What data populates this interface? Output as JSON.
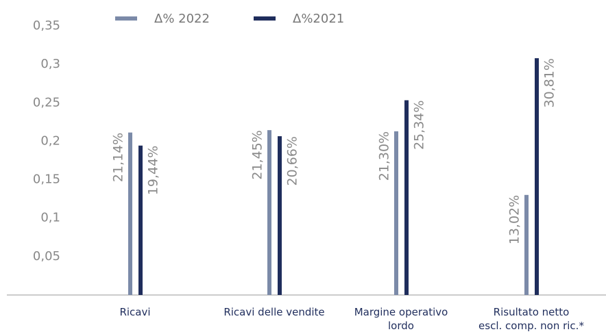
{
  "chart_data": {
    "type": "bar",
    "categories": [
      "Ricavi",
      "Ricavi delle vendite",
      "Margine operativo\nlordo",
      "Risultato netto\nescl. comp. non ric.*"
    ],
    "series": [
      {
        "name": "Δ% 2022",
        "color": "#7b8aa8",
        "values": [
          0.2114,
          0.2145,
          0.213,
          0.1302
        ],
        "value_labels": [
          "21,14%",
          "21,45%",
          "21,30%",
          "13,02%"
        ]
      },
      {
        "name": "Δ%2021",
        "color": "#1f2d5c",
        "values": [
          0.1944,
          0.2066,
          0.2534,
          0.3081
        ],
        "value_labels": [
          "19,44%",
          "20,66%",
          "25,34%",
          "30,81%"
        ]
      }
    ],
    "ylim": [
      0,
      0.35
    ],
    "yticks": [
      {
        "value": 0.05,
        "label": "0,05"
      },
      {
        "value": 0.1,
        "label": "0,1"
      },
      {
        "value": 0.15,
        "label": "0,15"
      },
      {
        "value": 0.2,
        "label": "0,2"
      },
      {
        "value": 0.25,
        "label": "0,25"
      },
      {
        "value": 0.3,
        "label": "0,3"
      },
      {
        "value": 0.35,
        "label": "0,35"
      }
    ],
    "legend": "top",
    "grid": false
  }
}
